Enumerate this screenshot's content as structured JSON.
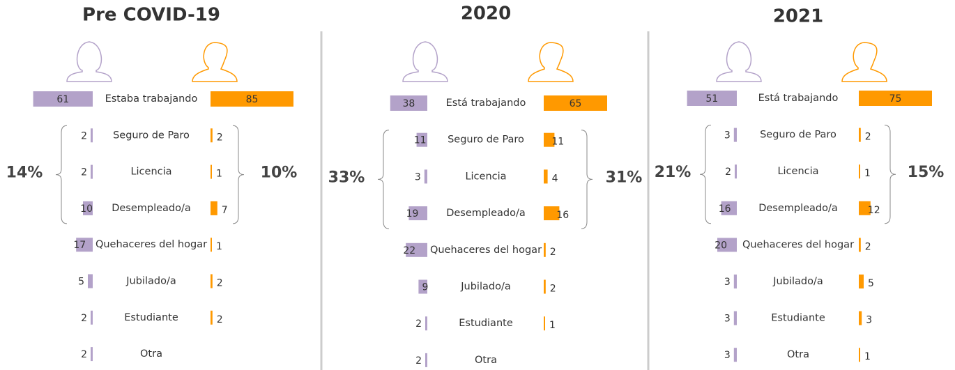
{
  "chart_data": [
    {
      "type": "bar",
      "title": "Pre COVID-19",
      "categories": [
        "Estaba trabajando",
        "Seguro de Paro",
        "Licencia",
        "Desempleado/a",
        "Quehaceres del hogar",
        "Jubilado/a",
        "Estudiante",
        "Otra"
      ],
      "series": [
        {
          "color": "#b3a2c9",
          "values": [
            61,
            2,
            2,
            10,
            17,
            5,
            2,
            2
          ]
        },
        {
          "color": "#ff9900",
          "values": [
            85,
            2,
            1,
            7,
            1,
            2,
            2,
            null
          ]
        }
      ],
      "annotations": [
        "14%",
        "10%"
      ]
    },
    {
      "type": "bar",
      "title": "2020",
      "categories": [
        "Está trabajando",
        "Seguro de Paro",
        "Licencia",
        "Desempleado/a",
        "Quehaceres del hogar",
        "Jubilado/a",
        "Estudiante",
        "Otra"
      ],
      "series": [
        {
          "color": "#b3a2c9",
          "values": [
            38,
            11,
            3,
            19,
            22,
            9,
            2,
            2
          ]
        },
        {
          "color": "#ff9900",
          "values": [
            65,
            11,
            4,
            16,
            2,
            2,
            1,
            null
          ]
        }
      ],
      "annotations": [
        "33%",
        "31%"
      ]
    },
    {
      "type": "bar",
      "title": "2021",
      "categories": [
        "Está trabajando",
        "Seguro de Paro",
        "Licencia",
        "Desempleado/a",
        "Quehaceres del hogar",
        "Jubilado/a",
        "Estudiante",
        "Otra"
      ],
      "series": [
        {
          "color": "#b3a2c9",
          "values": [
            51,
            3,
            2,
            16,
            20,
            3,
            3,
            3
          ]
        },
        {
          "color": "#ff9900",
          "values": [
            75,
            2,
            1,
            12,
            2,
            5,
            3,
            1
          ]
        }
      ],
      "annotations": [
        "21%",
        "15%"
      ]
    }
  ]
}
